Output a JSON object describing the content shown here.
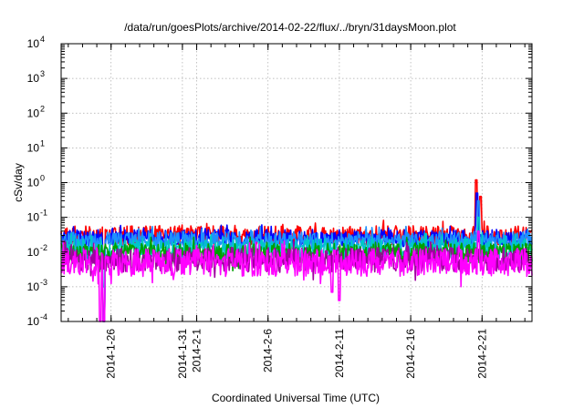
{
  "chart_data": {
    "type": "line",
    "title": "/data/run/goesPlots/archive/2014-02-22/flux/../bryn/31daysMoon.plot",
    "xlabel": "Coordinated Universal Time (UTC)",
    "ylabel": "cSv/day",
    "yscale": "log",
    "ylim": [
      0.0001,
      10000
    ],
    "xlim": [
      "2014-01-22T12:00",
      "2014-02-24T12:00"
    ],
    "grid": true,
    "legend": "none",
    "x_ticks": [
      "2014-1-26",
      "2014-1-31",
      "2014-2-1",
      "2014-2-6",
      "2014-2-11",
      "2014-2-16",
      "2014-2-21"
    ],
    "y_ticks": [
      {
        "base": "10",
        "exp": "4"
      },
      {
        "base": "10",
        "exp": "3"
      },
      {
        "base": "10",
        "exp": "2"
      },
      {
        "base": "10",
        "exp": "1"
      },
      {
        "base": "10",
        "exp": "0"
      },
      {
        "base": "10",
        "exp": "-1"
      },
      {
        "base": "10",
        "exp": "-2"
      },
      {
        "base": "10",
        "exp": "-3"
      },
      {
        "base": "10",
        "exp": "-4"
      }
    ],
    "series": [
      {
        "color": "#ff0000",
        "level": 0.03,
        "spread": 0.28,
        "events": [
          {
            "x": "2014-01-25T12:00",
            "y": 0.0001
          },
          {
            "x": "2014-02-20T14:00",
            "y": 1.2
          },
          {
            "x": "2014-02-20T22:00",
            "y": 0.4
          }
        ]
      },
      {
        "color": "#0000ff",
        "level": 0.025,
        "spread": 0.25,
        "events": [
          {
            "x": "2014-01-25T12:00",
            "y": 0.0001
          },
          {
            "x": "2014-02-20T16:00",
            "y": 0.5
          }
        ]
      },
      {
        "color": "#1e90ff",
        "level": 0.022,
        "spread": 0.25,
        "events": [
          {
            "x": "2014-01-25T12:00",
            "y": 0.0001
          },
          {
            "x": "2014-02-20T18:00",
            "y": 0.3
          }
        ]
      },
      {
        "color": "#00c8c8",
        "level": 0.012,
        "spread": 0.3,
        "events": [
          {
            "x": "2014-01-25T12:00",
            "y": 0.001
          },
          {
            "x": "2014-02-20T18:00",
            "y": 0.1
          }
        ]
      },
      {
        "color": "#00a000",
        "level": 0.009,
        "spread": 0.3,
        "events": []
      },
      {
        "color": "#a000a0",
        "level": 0.006,
        "spread": 0.35,
        "events": []
      },
      {
        "color": "#ff00ff",
        "level": 0.005,
        "spread": 0.4,
        "events": [
          {
            "x": "2014-01-25T06:00",
            "y": 0.0001
          },
          {
            "x": "2014-01-25T12:00",
            "y": 0.0001
          },
          {
            "x": "2014-02-10T12:00",
            "y": 0.0007
          },
          {
            "x": "2014-02-11T00:00",
            "y": 0.0004
          },
          {
            "x": "2014-02-20T18:00",
            "y": 0.04
          }
        ]
      }
    ]
  }
}
